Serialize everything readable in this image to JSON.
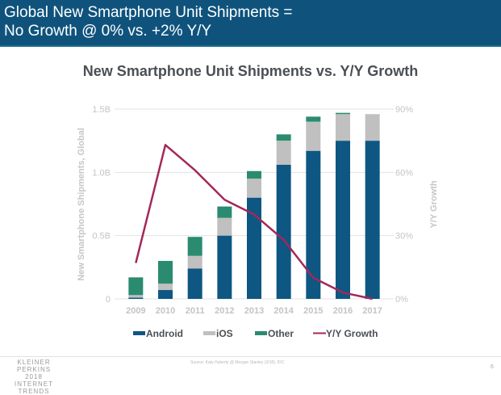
{
  "header": {
    "title_line1": "Global New Smartphone Unit Shipments =",
    "title_line2": "No Growth @ 0% vs. +2% Y/Y"
  },
  "footer": {
    "brand_line1": "KLEINER PERKINS",
    "brand_line2": "2018",
    "brand_line3": "INTERNET TRENDS",
    "source": "Source: Katy Huberty @ Morgan Stanley (3/18), IDC",
    "page_number": "6"
  },
  "colors": {
    "header_bg": "#0f537d",
    "android": "#0d5782",
    "ios": "#c0c0c0",
    "other": "#2a8b70",
    "growth": "#a3285a",
    "gridline": "#e3e3e3",
    "axis_text": "#c4c4c4"
  },
  "chart_data": {
    "type": "bar",
    "stacked": true,
    "title": "New Smartphone Unit Shipments vs. Y/Y Growth",
    "xlabel": "",
    "ylabel": "New Smartphone Shipments, Global",
    "y2label": "Y/Y Growth",
    "categories": [
      "2009",
      "2010",
      "2011",
      "2012",
      "2013",
      "2014",
      "2015",
      "2016",
      "2017"
    ],
    "ylim": [
      0,
      1.5
    ],
    "yticks": [
      0,
      0.5,
      1.0,
      1.5
    ],
    "ytick_labels": [
      "0",
      "0.5B",
      "1.0B",
      "1.5B"
    ],
    "y2lim": [
      0,
      90
    ],
    "y2ticks": [
      0,
      30,
      60,
      90
    ],
    "y2tick_labels": [
      "0%",
      "30%",
      "60%",
      "90%"
    ],
    "grid": true,
    "legend_position": "bottom",
    "series": [
      {
        "name": "Android",
        "type": "bar",
        "axis": "left",
        "values": [
          0.01,
          0.07,
          0.24,
          0.5,
          0.8,
          1.06,
          1.17,
          1.25,
          1.25
        ]
      },
      {
        "name": "iOS",
        "type": "bar",
        "axis": "left",
        "values": [
          0.02,
          0.05,
          0.1,
          0.14,
          0.15,
          0.19,
          0.23,
          0.21,
          0.21
        ]
      },
      {
        "name": "Other",
        "type": "bar",
        "axis": "left",
        "values": [
          0.14,
          0.18,
          0.15,
          0.09,
          0.06,
          0.05,
          0.04,
          0.01,
          0.0
        ]
      },
      {
        "name": "Y/Y Growth",
        "type": "line",
        "axis": "right",
        "values": [
          17,
          73,
          61,
          47,
          40,
          28,
          10,
          3,
          0
        ]
      }
    ]
  }
}
